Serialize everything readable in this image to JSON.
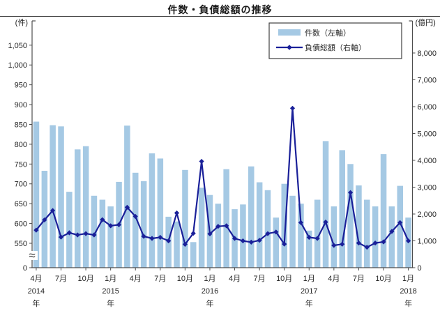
{
  "title": "件数・負債総額の推移",
  "legend": {
    "items": [
      {
        "label": "件数（左軸）",
        "type": "bar"
      },
      {
        "label": "負債総額（右軸）",
        "type": "line"
      }
    ]
  },
  "left_axis": {
    "unit": "(件)",
    "tick_labels": [
      "550",
      "600",
      "650",
      "700",
      "750",
      "800",
      "850",
      "900",
      "950",
      "1,000",
      "1,050"
    ],
    "zero_label": "0",
    "has_break": true,
    "break_glyph": "≈"
  },
  "right_axis": {
    "unit": "(億円)",
    "tick_labels": [
      "0",
      "1,000",
      "2,000",
      "3,000",
      "4,000",
      "5,000",
      "6,000",
      "7,000",
      "8,000"
    ]
  },
  "x_axis": {
    "year_suffix": "年",
    "ticks": [
      {
        "i": 0,
        "month": "4月",
        "year": "2014"
      },
      {
        "i": 3,
        "month": "7月"
      },
      {
        "i": 6,
        "month": "10月"
      },
      {
        "i": 9,
        "month": "1月",
        "year": "2015"
      },
      {
        "i": 12,
        "month": "4月"
      },
      {
        "i": 15,
        "month": "7月"
      },
      {
        "i": 18,
        "month": "10月"
      },
      {
        "i": 21,
        "month": "1月",
        "year": "2016"
      },
      {
        "i": 24,
        "month": "4月"
      },
      {
        "i": 27,
        "month": "7月"
      },
      {
        "i": 30,
        "month": "10月"
      },
      {
        "i": 33,
        "month": "1月",
        "year": "2017"
      },
      {
        "i": 36,
        "month": "4月"
      },
      {
        "i": 39,
        "month": "7月"
      },
      {
        "i": 42,
        "month": "10月"
      },
      {
        "i": 45,
        "month": "1月",
        "year": "2018"
      }
    ]
  },
  "colors": {
    "bar_fill": "#A5C9E4",
    "line_stroke": "#1A2099",
    "axis": "#4d4d4d",
    "text": "#262626"
  },
  "chart_data": {
    "type": "combo",
    "title": "件数・負債総額の推移",
    "x": [
      "2014-04",
      "2014-05",
      "2014-06",
      "2014-07",
      "2014-08",
      "2014-09",
      "2014-10",
      "2014-11",
      "2014-12",
      "2015-01",
      "2015-02",
      "2015-03",
      "2015-04",
      "2015-05",
      "2015-06",
      "2015-07",
      "2015-08",
      "2015-09",
      "2015-10",
      "2015-11",
      "2015-12",
      "2016-01",
      "2016-02",
      "2016-03",
      "2016-04",
      "2016-05",
      "2016-06",
      "2016-07",
      "2016-08",
      "2016-09",
      "2016-10",
      "2016-11",
      "2016-12",
      "2017-01",
      "2017-02",
      "2017-03",
      "2017-04",
      "2017-05",
      "2017-06",
      "2017-07",
      "2017-08",
      "2017-09",
      "2017-10",
      "2017-11",
      "2017-12",
      "2018-01"
    ],
    "series": [
      {
        "name": "件数（左軸）",
        "type": "bar",
        "axis": "left",
        "unit": "件",
        "values": [
          857,
          733,
          848,
          845,
          680,
          787,
          795,
          670,
          660,
          643,
          705,
          847,
          728,
          707,
          777,
          764,
          617,
          605,
          735,
          553,
          690,
          672,
          650,
          737,
          636,
          648,
          744,
          704,
          684,
          615,
          700,
          670,
          650,
          582,
          660,
          808,
          643,
          785,
          750,
          696,
          660,
          643,
          775,
          643,
          695,
          615
        ]
      },
      {
        "name": "負債総額（右軸）",
        "type": "line",
        "axis": "right",
        "unit": "億円",
        "values": [
          1400,
          1780,
          2130,
          1140,
          1300,
          1220,
          1270,
          1220,
          1790,
          1560,
          1600,
          2250,
          1910,
          1170,
          1090,
          1130,
          1000,
          2040,
          870,
          1280,
          3960,
          1260,
          1540,
          1560,
          1090,
          1000,
          950,
          1020,
          1270,
          1330,
          880,
          5940,
          1680,
          1130,
          1090,
          1700,
          830,
          875,
          2800,
          920,
          760,
          920,
          960,
          1350,
          1680,
          1000
        ]
      }
    ],
    "left_ylim": [
      550,
      1050
    ],
    "left_axis_break_to_zero": true,
    "right_ylim": [
      0,
      8000
    ],
    "grid": false,
    "legend_position": "top-right-inside"
  }
}
